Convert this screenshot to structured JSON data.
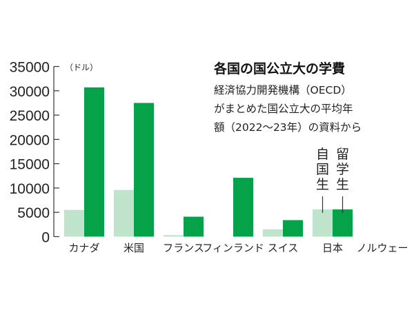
{
  "chart_data": {
    "type": "bar",
    "title": "各国の国公立大の学費",
    "subtitle": [
      "経済協力開発機構（OECD）",
      "がまとめた国公立大の平均年",
      "額（2022～23年）の資料から"
    ],
    "ylabel": "（ドル）",
    "ylim": [
      0,
      35000
    ],
    "yticks": [
      0,
      5000,
      10000,
      15000,
      20000,
      25000,
      30000,
      35000
    ],
    "grid": false,
    "categories": [
      "カナダ",
      "米国",
      "フランス",
      "フィンランド",
      "スイス",
      "日本",
      "ノルウェー"
    ],
    "series": [
      {
        "name": "自国生",
        "color": "#bfe3cb",
        "values": [
          5500,
          9600,
          300,
          0,
          1500,
          5600,
          0
        ]
      },
      {
        "name": "留学生",
        "color": "#06a24a",
        "values": [
          30700,
          27500,
          4100,
          12100,
          3400,
          5600,
          0
        ]
      }
    ],
    "legend": "inline-labels-on-japan-bars"
  }
}
